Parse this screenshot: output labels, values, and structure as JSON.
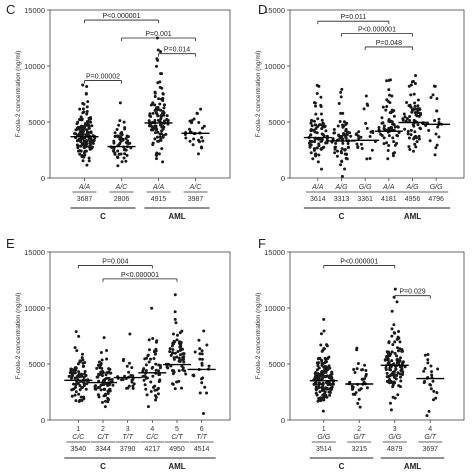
{
  "chart_data": [
    {
      "type": "scatter",
      "panel_label": "C",
      "ylabel": "F-cola-2 concentration (ng/ml)",
      "ylim": [
        0,
        15000
      ],
      "yticks": [
        0,
        5000,
        10000,
        15000
      ],
      "categories": [
        "A/A",
        "A/C",
        "A/A",
        "A/C"
      ],
      "values": [
        3687,
        2806,
        4915,
        3987
      ],
      "groups": [
        {
          "label": "C",
          "span": [
            0,
            1
          ]
        },
        {
          "label": "AML",
          "span": [
            2,
            3
          ]
        }
      ],
      "comparisons": [
        {
          "label": "P<0.000001",
          "from": 0,
          "to": 2,
          "y": 14100
        },
        {
          "label": "P=0.00002",
          "from": 0,
          "to": 1,
          "y": 8700
        },
        {
          "label": "P=0.001",
          "from": 1,
          "to": 3,
          "y": 12500
        },
        {
          "label": "P=0.014",
          "from": 2,
          "to": 3,
          "y": 11100
        }
      ],
      "spread": [
        1900,
        1500,
        2400,
        2100
      ],
      "counts": [
        150,
        60,
        110,
        30
      ]
    },
    {
      "type": "scatter",
      "panel_label": "D",
      "ylabel": "F-cola-2 concentration (ng/ml)",
      "ylim": [
        0,
        15000
      ],
      "yticks": [
        0,
        5000,
        10000,
        15000
      ],
      "categories": [
        "A/A",
        "A/G",
        "G/G",
        "A/A",
        "A/G",
        "G/G"
      ],
      "values": [
        3614,
        3313,
        3361,
        4181,
        4956,
        4796
      ],
      "groups": [
        {
          "label": "C",
          "span": [
            0,
            2
          ]
        },
        {
          "label": "AML",
          "span": [
            3,
            5
          ]
        }
      ],
      "comparisons": [
        {
          "label": "P=0.011",
          "from": 0,
          "to": 3,
          "y": 14000
        },
        {
          "label": "P<0.000001",
          "from": 1,
          "to": 4,
          "y": 12900
        },
        {
          "label": "P=0.048",
          "from": 2,
          "to": 4,
          "y": 11700
        }
      ],
      "spread": [
        1800,
        1600,
        1700,
        2000,
        2200,
        2000
      ],
      "counts": [
        90,
        70,
        25,
        70,
        70,
        22
      ]
    },
    {
      "type": "scatter",
      "panel_label": "E",
      "ylabel": "F-cola-2 concentration (ng/ml)",
      "ylim": [
        0,
        15000
      ],
      "yticks": [
        0,
        5000,
        10000,
        15000
      ],
      "tick_numbers": [
        "1",
        "2",
        "3",
        "4",
        "5",
        "6"
      ],
      "categories": [
        "C/C",
        "C/T",
        "T/T",
        "C/C",
        "C/T",
        "T/T"
      ],
      "values": [
        3540,
        3344,
        3790,
        4217,
        4950,
        4514
      ],
      "groups": [
        {
          "label": "C",
          "span": [
            0,
            2
          ]
        },
        {
          "label": "AML",
          "span": [
            3,
            5
          ]
        }
      ],
      "comparisons": [
        {
          "label": "P=0.004",
          "from": 0,
          "to": 3,
          "y": 13800
        },
        {
          "label": "P<0.000001",
          "from": 1,
          "to": 4,
          "y": 12600
        }
      ],
      "spread": [
        1800,
        1600,
        1700,
        2100,
        2300,
        1900
      ],
      "counts": [
        90,
        80,
        25,
        60,
        70,
        25
      ]
    },
    {
      "type": "scatter",
      "panel_label": "F",
      "ylabel": "F-cola-2 concentration (ng/ml)",
      "ylim": [
        0,
        15000
      ],
      "yticks": [
        0,
        5000,
        10000,
        15000
      ],
      "tick_numbers": [
        "1",
        "2",
        "3",
        "4"
      ],
      "categories": [
        "G/G",
        "G/T",
        "G/G",
        "G/T"
      ],
      "values": [
        3514,
        3215,
        4879,
        3697
      ],
      "groups": [
        {
          "label": "C",
          "span": [
            0,
            1
          ]
        },
        {
          "label": "AML",
          "span": [
            2,
            3
          ]
        }
      ],
      "comparisons": [
        {
          "label": "P<0.000001",
          "from": 0,
          "to": 2,
          "y": 13800
        },
        {
          "label": "P=0.029",
          "from": 2,
          "to": 3,
          "y": 11100
        }
      ],
      "spread": [
        1900,
        1500,
        2300,
        2000
      ],
      "counts": [
        160,
        35,
        120,
        25
      ]
    }
  ]
}
